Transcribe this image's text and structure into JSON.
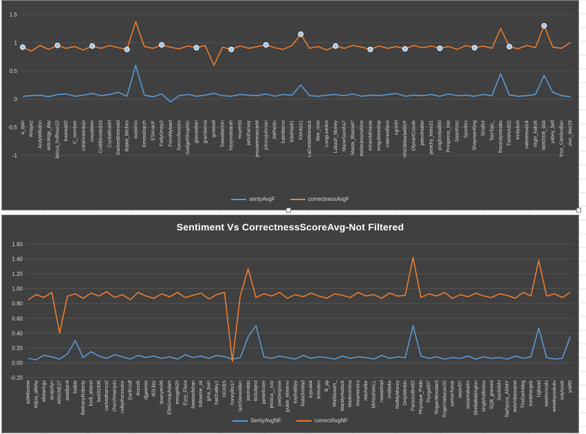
{
  "colors": {
    "blue": "#5b9bd5",
    "orange": "#ed7d31",
    "panel": "#404040",
    "text": "#d9d9d9",
    "grid": "#595959"
  },
  "chart_data": [
    {
      "type": "line",
      "title": "",
      "ylim": [
        -1.5,
        1.5
      ],
      "yticks": [
        "1.5",
        "1",
        "0.5",
        "0",
        "-0.5",
        "-1"
      ],
      "categories": [
        "a_epic",
        "AHayez",
        "AndyWilsdon",
        "astrology_day",
        "becca_hoffman22",
        "bowma02",
        "C_mentzer",
        "catarinaaraujo",
        "cissattmm",
        "ColdBlooded16",
        "CrystalKoehl",
        "DarkestEmerald",
        "dopee_bitches",
        "easterss",
        "EmmaDarch",
        "ESenanF",
        "FatlyOmsy2",
        "FerniMykael",
        "foxconfessors",
        "GadgetShopNG",
        "glasstalian",
        "grandanna",
        "grmmoll",
        "hawaiilanion",
        "heyymalsarah",
        "Hozer93",
        "jamoharvey",
        "jesusemmanueM",
        "johnnyjohnsin",
        "JWPerlin",
        "katmberno",
        "kdwhite81",
        "Klenks11",
        "LaCretiaWomack",
        "lilee_rose",
        "LongLiveAnt",
        "Lukash_Money",
        "ManeSavoha7",
        "Masta_Blasta47",
        "melaniesunshine",
        "mirandahouse",
        "mogulstoretop",
        "naterwallace",
        "ngrmhl",
        "NNGBMarbelliSP",
        "OlyeartCosule",
        "petrofmalite",
        "peachy_keen21",
        "pnigfootball50",
        "Prosperos_Isle",
        "Saamhmz",
        "Sportles",
        "ShaymanKing",
        "Sinallot",
        "TainTain_",
        "thecindymirabx",
        "TIANNA302",
        "trinitytorii",
        "valerietrueick",
        "virgin_kakott",
        "WINTER_004",
        "yabey_bell",
        "Your_Cambodian",
        "zion_diaz19"
      ],
      "series": [
        {
          "name": "sentyAvgF",
          "values": [
            0.05,
            0.06,
            0.07,
            0.04,
            0.08,
            0.09,
            0.05,
            0.07,
            0.1,
            0.06,
            0.08,
            0.12,
            0.05,
            0.6,
            0.07,
            0.04,
            0.09,
            -0.05,
            0.06,
            0.08,
            0.05,
            0.07,
            0.1,
            0.06,
            0.05,
            0.08,
            0.07,
            0.06,
            0.09,
            0.05,
            0.08,
            0.07,
            0.25,
            0.06,
            0.05,
            0.07,
            0.08,
            0.06,
            0.09,
            0.05,
            0.07,
            0.06,
            0.08,
            0.1,
            0.05,
            0.07,
            0.06,
            0.08,
            0.05,
            0.09,
            0.06,
            0.07,
            0.05,
            0.08,
            0.06,
            0.45,
            0.07,
            0.05,
            0.06,
            0.08,
            0.42,
            0.12,
            0.06,
            0.04
          ]
        },
        {
          "name": "correctnessAvgF",
          "values": [
            0.92,
            0.85,
            0.95,
            0.88,
            0.95,
            0.9,
            0.93,
            0.87,
            0.94,
            0.9,
            0.95,
            0.91,
            0.88,
            1.37,
            0.93,
            0.9,
            0.96,
            0.92,
            0.89,
            0.94,
            0.91,
            0.95,
            0.6,
            0.92,
            0.88,
            0.94,
            0.9,
            0.93,
            0.96,
            0.91,
            0.88,
            0.95,
            1.15,
            0.9,
            0.93,
            0.87,
            0.94,
            0.9,
            0.95,
            0.92,
            0.88,
            0.94,
            0.9,
            0.93,
            0.89,
            0.95,
            0.91,
            0.94,
            0.9,
            0.93,
            0.88,
            0.95,
            0.91,
            0.94,
            0.9,
            1.25,
            0.93,
            0.89,
            0.95,
            0.91,
            1.3,
            0.92,
            0.9,
            1.0
          ]
        }
      ],
      "legend": [
        "sentyAvgF",
        "correctnessAvgF"
      ]
    },
    {
      "type": "line",
      "title": "Sentiment Vs CorrectnessScoreAvg-Not Filtered",
      "ylim": [
        -0.2,
        1.6
      ],
      "yticks": [
        "1.60",
        "1.40",
        "1.20",
        "1.00",
        "0.80",
        "0.60",
        "0.40",
        "0.20",
        "0.00",
        "-0.20"
      ],
      "categories": [
        "a2lettsome",
        "Adjoa_alldAy",
        "allstarings",
        "anajorlyn",
        "ARIONE27",
        "awalljan4",
        "baibie",
        "BethanyRoberty",
        "bodi_alainel",
        "burl31006",
        "carlotafranco2",
        "churchmarquis",
        "colbythecreator",
        "DarthVolf",
        "dozzzb",
        "djgeemix",
        "dOLliey",
        "duanyen96",
        "ElteGroupAdam",
        "emogirl420",
        "Eyyy_Flaca",
        "fawwazfahan",
        "followme_ok",
        "gina_bain",
        "hatchalley1",
        "HOXBS",
        "honeylito17",
        "IamSteveAllen",
        "jasonalas",
        "itsSubject",
        "jamiefoster",
        "jessica__ruiz",
        "joelzespose",
        "jyukie_elimeno",
        "kaybabbyy",
        "kiala3midad",
        "krpn444",
        "lexivalvo",
        "lil_pp",
        "Madasaam_",
        "MandyHudack",
        "MarleneVina",
        "meamereira",
        "mitchelke",
        "MrNoshitALL",
        "nawashad",
        "nmbleke",
        "NotMyMoney",
        "OnlyWerbin",
        "ParsonsBrett2",
        "Physique_Pride",
        "Punga007",
        "RoganWoodard",
        "RogerVadacan32",
        "samachasar",
        "sayinl07",
        "seoamakatim",
        "ShellaBabington",
        "singlehalfestss",
        "SQB_gtamed",
        "SunilAbhi",
        "Taehyuns_ARMY",
        "tedchittamame",
        "TheDarkMeg",
        "tombhergeb",
        "Ugbaad",
        "wastevocals",
        "wowitsyoukutu",
        "xxlyloxxb",
        "yoli60"
      ],
      "series": [
        {
          "name": "SentyAvgNF",
          "values": [
            0.06,
            0.04,
            0.1,
            0.08,
            0.05,
            0.12,
            0.3,
            0.07,
            0.15,
            0.09,
            0.06,
            0.11,
            0.08,
            0.05,
            0.1,
            0.07,
            0.09,
            0.06,
            0.08,
            0.05,
            0.11,
            0.07,
            0.09,
            0.06,
            0.1,
            0.08,
            0.05,
            0.07,
            0.35,
            0.5,
            0.08,
            0.06,
            0.09,
            0.07,
            0.05,
            0.1,
            0.06,
            0.08,
            0.07,
            0.05,
            0.09,
            0.06,
            0.08,
            0.07,
            0.05,
            0.1,
            0.06,
            0.08,
            0.07,
            0.5,
            0.09,
            0.06,
            0.08,
            0.05,
            0.07,
            0.06,
            0.09,
            0.05,
            0.08,
            0.06,
            0.07,
            0.05,
            0.09,
            0.06,
            0.08,
            0.47,
            0.07,
            0.05,
            0.06,
            0.35
          ]
        },
        {
          "name": "correctAvgNF",
          "values": [
            0.85,
            0.92,
            0.88,
            0.95,
            0.4,
            0.9,
            0.93,
            0.87,
            0.94,
            0.9,
            0.96,
            0.88,
            0.92,
            0.85,
            0.95,
            0.9,
            0.87,
            0.93,
            0.89,
            0.95,
            0.88,
            0.91,
            0.94,
            0.86,
            0.92,
            0.95,
            0.02,
            0.9,
            1.27,
            0.88,
            0.93,
            0.9,
            0.95,
            0.87,
            0.92,
            0.89,
            0.94,
            0.9,
            0.87,
            0.93,
            0.91,
            0.88,
            0.95,
            0.9,
            0.92,
            0.87,
            0.94,
            0.9,
            0.91,
            1.42,
            0.88,
            0.93,
            0.9,
            0.95,
            0.87,
            0.92,
            0.89,
            0.94,
            0.9,
            0.88,
            0.93,
            0.91,
            0.87,
            0.95,
            0.9,
            1.38,
            0.9,
            0.93,
            0.88,
            0.95
          ]
        }
      ],
      "legend": [
        "SentyAvgNF",
        "correctAvgNF"
      ]
    }
  ]
}
